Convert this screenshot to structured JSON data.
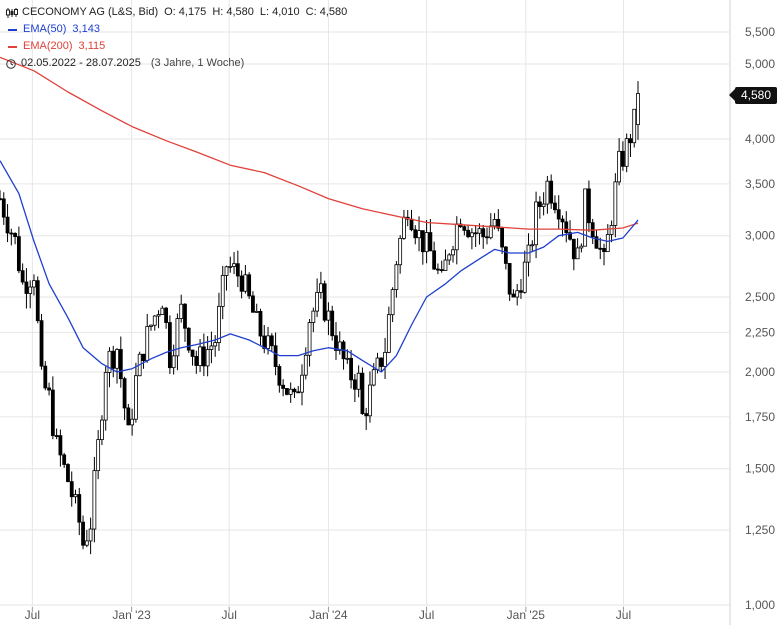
{
  "legend": {
    "title": "CECONOMY AG (L&S, Bid)",
    "open": "O: 4,175",
    "high": "H: 4,580",
    "low": "L: 4,010",
    "close": "C: 4,580",
    "ema50_label": "EMA(50)",
    "ema50_value": "3,143",
    "ema200_label": "EMA(200)",
    "ema200_value": "3,115",
    "date_range": "02.05.2022 - 28.07.2025",
    "period": "(3 Jahre, 1 Woche)",
    "chart_type_icon": "candlestick-icon",
    "range_icon": "clock-icon"
  },
  "last_price_badge": "4,580",
  "colors": {
    "ema50": "#1f3fcf",
    "ema200": "#e0413a",
    "candle": "#000000",
    "grid": "#e6e6e6"
  },
  "chart_data": {
    "type": "candlestick",
    "title": "CECONOMY AG (L&S, Bid)",
    "y_scale": "log",
    "ylim": [
      0.95,
      5.9
    ],
    "y_ticks": [
      1.0,
      1.25,
      1.5,
      1.75,
      2.0,
      2.25,
      2.5,
      3.0,
      3.5,
      4.0,
      5.0,
      5.5
    ],
    "y_tick_labels": [
      "1,000",
      "1,250",
      "1,500",
      "1,750",
      "2,000",
      "2,250",
      "2,500",
      "3,000",
      "3,500",
      "4,000",
      "5,000",
      "5,500"
    ],
    "x_ticks": [
      {
        "date": "2022-07-01",
        "label": "Jul"
      },
      {
        "date": "2023-01-01",
        "label": "Jan '23"
      },
      {
        "date": "2023-07-01",
        "label": "Jul"
      },
      {
        "date": "2024-01-01",
        "label": "Jan '24"
      },
      {
        "date": "2024-07-01",
        "label": "Jul"
      },
      {
        "date": "2025-01-01",
        "label": "Jan '25"
      },
      {
        "date": "2025-07-01",
        "label": "Jul"
      }
    ],
    "grid": true,
    "last_price": 4.58,
    "series": [
      {
        "name": "CECONOMY AG (L&S, Bid)",
        "type": "candlestick",
        "close_points": [
          [
            "2022-05-02",
            3.35
          ],
          [
            "2022-05-30",
            2.95
          ],
          [
            "2022-06-13",
            2.6
          ],
          [
            "2022-07-04",
            2.7
          ],
          [
            "2022-07-18",
            1.95
          ],
          [
            "2022-08-01",
            1.85
          ],
          [
            "2022-08-15",
            1.6
          ],
          [
            "2022-09-05",
            1.45
          ],
          [
            "2022-09-26",
            1.28
          ],
          [
            "2022-10-03",
            1.2
          ],
          [
            "2022-10-17",
            1.28
          ],
          [
            "2022-10-31",
            1.6
          ],
          [
            "2022-11-14",
            2.05
          ],
          [
            "2022-12-05",
            2.15
          ],
          [
            "2022-12-26",
            1.65
          ],
          [
            "2023-01-09",
            1.95
          ],
          [
            "2023-01-23",
            2.15
          ],
          [
            "2023-02-06",
            2.3
          ],
          [
            "2023-02-27",
            2.5
          ],
          [
            "2023-03-13",
            2.1
          ],
          [
            "2023-04-03",
            2.4
          ],
          [
            "2023-05-01",
            2.05
          ],
          [
            "2023-06-05",
            2.2
          ],
          [
            "2023-06-26",
            2.75
          ],
          [
            "2023-07-24",
            2.65
          ],
          [
            "2023-08-21",
            2.3
          ],
          [
            "2023-09-18",
            2.1
          ],
          [
            "2023-10-16",
            1.9
          ],
          [
            "2023-10-30",
            1.82
          ],
          [
            "2023-11-13",
            2.05
          ],
          [
            "2023-11-27",
            2.35
          ],
          [
            "2023-12-18",
            2.5
          ],
          [
            "2024-01-01",
            2.35
          ],
          [
            "2024-01-15",
            2.2
          ],
          [
            "2024-02-05",
            2.0
          ],
          [
            "2024-02-26",
            1.95
          ],
          [
            "2024-03-04",
            1.75
          ],
          [
            "2024-03-25",
            1.95
          ],
          [
            "2024-04-15",
            2.15
          ],
          [
            "2024-05-06",
            2.8
          ],
          [
            "2024-05-27",
            3.3
          ],
          [
            "2024-06-17",
            3.0
          ],
          [
            "2024-07-08",
            2.85
          ],
          [
            "2024-07-29",
            2.6
          ],
          [
            "2024-08-12",
            2.9
          ],
          [
            "2024-09-02",
            3.2
          ],
          [
            "2024-09-23",
            3.05
          ],
          [
            "2024-10-14",
            3.0
          ],
          [
            "2024-11-04",
            3.15
          ],
          [
            "2024-11-25",
            2.7
          ],
          [
            "2024-12-09",
            2.45
          ],
          [
            "2024-12-23",
            2.65
          ],
          [
            "2025-01-06",
            2.8
          ],
          [
            "2025-01-20",
            3.2
          ],
          [
            "2025-02-10",
            3.5
          ],
          [
            "2025-03-03",
            3.3
          ],
          [
            "2025-03-17",
            3.1
          ],
          [
            "2025-04-07",
            2.8
          ],
          [
            "2025-04-21",
            3.3
          ],
          [
            "2025-05-12",
            3.0
          ],
          [
            "2025-05-26",
            2.75
          ],
          [
            "2025-06-09",
            3.2
          ],
          [
            "2025-06-23",
            3.7
          ],
          [
            "2025-07-07",
            3.9
          ],
          [
            "2025-07-21",
            4.2
          ],
          [
            "2025-07-28",
            4.58
          ]
        ]
      },
      {
        "name": "EMA(50)",
        "type": "line",
        "points": [
          [
            "2022-05-02",
            3.75
          ],
          [
            "2022-06-06",
            3.4
          ],
          [
            "2022-07-04",
            2.95
          ],
          [
            "2022-08-01",
            2.6
          ],
          [
            "2022-09-05",
            2.35
          ],
          [
            "2022-10-03",
            2.15
          ],
          [
            "2022-11-07",
            2.05
          ],
          [
            "2022-12-05",
            2.0
          ],
          [
            "2023-01-02",
            2.02
          ],
          [
            "2023-02-06",
            2.08
          ],
          [
            "2023-03-06",
            2.12
          ],
          [
            "2023-04-03",
            2.15
          ],
          [
            "2023-05-01",
            2.17
          ],
          [
            "2023-06-05",
            2.2
          ],
          [
            "2023-07-03",
            2.24
          ],
          [
            "2023-08-07",
            2.2
          ],
          [
            "2023-09-04",
            2.15
          ],
          [
            "2023-10-02",
            2.1
          ],
          [
            "2023-11-06",
            2.1
          ],
          [
            "2023-12-04",
            2.13
          ],
          [
            "2024-01-01",
            2.15
          ],
          [
            "2024-02-05",
            2.13
          ],
          [
            "2024-03-04",
            2.07
          ],
          [
            "2024-04-08",
            2.0
          ],
          [
            "2024-05-06",
            2.1
          ],
          [
            "2024-06-03",
            2.3
          ],
          [
            "2024-07-01",
            2.5
          ],
          [
            "2024-08-05",
            2.6
          ],
          [
            "2024-09-02",
            2.7
          ],
          [
            "2024-10-07",
            2.8
          ],
          [
            "2024-11-04",
            2.88
          ],
          [
            "2024-12-02",
            2.85
          ],
          [
            "2025-01-06",
            2.85
          ],
          [
            "2025-02-03",
            2.9
          ],
          [
            "2025-03-03",
            3.0
          ],
          [
            "2025-04-07",
            3.03
          ],
          [
            "2025-05-05",
            2.98
          ],
          [
            "2025-06-02",
            2.95
          ],
          [
            "2025-06-30",
            2.98
          ],
          [
            "2025-07-28",
            3.143
          ]
        ]
      },
      {
        "name": "EMA(200)",
        "type": "line",
        "points": [
          [
            "2022-05-02",
            5.1
          ],
          [
            "2022-07-04",
            4.9
          ],
          [
            "2022-09-05",
            4.6
          ],
          [
            "2022-11-07",
            4.35
          ],
          [
            "2023-01-02",
            4.15
          ],
          [
            "2023-03-06",
            3.98
          ],
          [
            "2023-05-01",
            3.85
          ],
          [
            "2023-07-03",
            3.7
          ],
          [
            "2023-09-04",
            3.62
          ],
          [
            "2023-11-06",
            3.48
          ],
          [
            "2024-01-01",
            3.35
          ],
          [
            "2024-03-04",
            3.25
          ],
          [
            "2024-05-06",
            3.18
          ],
          [
            "2024-07-01",
            3.12
          ],
          [
            "2024-09-02",
            3.1
          ],
          [
            "2024-11-04",
            3.08
          ],
          [
            "2025-01-06",
            3.06
          ],
          [
            "2025-03-03",
            3.06
          ],
          [
            "2025-05-05",
            3.05
          ],
          [
            "2025-06-30",
            3.07
          ],
          [
            "2025-07-28",
            3.115
          ]
        ]
      }
    ]
  }
}
